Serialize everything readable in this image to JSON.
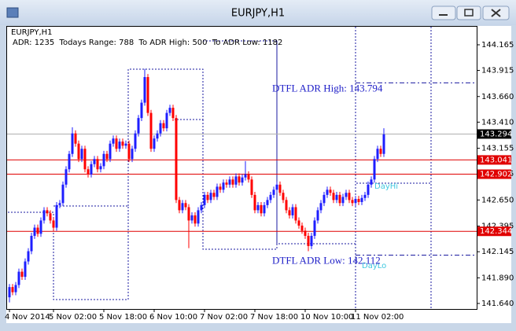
{
  "window": {
    "title": "EURJPY,H1"
  },
  "chart_data": {
    "type": "candlestick",
    "title": "EURJPY,H1",
    "subtitle": "ADR: 1235  Todays Range: 788  To ADR High: 500  To ADR Low: 1182",
    "up_color": "#1e1eff",
    "down_color": "#ff0000",
    "ylim": [
      141.586,
      144.349
    ],
    "yticks": [
      144.165,
      143.915,
      {
        "value": 143.66,
        "label": "143.660"
      },
      {
        "value": 143.41,
        "label": "143.410"
      },
      143.155,
      142.905,
      {
        "value": 142.65,
        "label": "142.650"
      },
      142.395,
      142.145,
      {
        "value": 141.89,
        "label": "141.890"
      },
      {
        "value": 141.64,
        "label": "141.640"
      }
    ],
    "xticks": [
      {
        "value": 0,
        "label": "4 Nov 2014"
      },
      {
        "value": 14,
        "label": "5 Nov 02:00"
      },
      {
        "value": 30,
        "label": "5 Nov 18:00"
      },
      {
        "value": 46,
        "label": "6 Nov 10:00"
      },
      {
        "value": 62,
        "label": "7 Nov 02:00"
      },
      {
        "value": 78,
        "label": "7 Nov 18:00"
      },
      {
        "value": 94,
        "label": "10 Nov 10:00"
      },
      {
        "value": 110,
        "label": "11 Nov 02:00"
      }
    ],
    "hlines": [
      {
        "value": 143.294,
        "color": "#b0b0b0"
      },
      {
        "value": 143.041,
        "color": "#e00000"
      },
      {
        "value": 142.902,
        "color": "#e00000"
      },
      {
        "value": 142.344,
        "color": "#e00000"
      }
    ],
    "adr_lines": [
      {
        "value": 143.794,
        "label": "DTFL ADR High: 143.794"
      },
      {
        "value": 142.112,
        "label": "DTFL ADR Low: 142.112"
      }
    ],
    "annotations": [
      "DayHi",
      "DayLo"
    ],
    "candles": [
      [
        141.7,
        141.83,
        141.65,
        141.8
      ],
      [
        141.8,
        141.83,
        141.72,
        141.75
      ],
      [
        141.75,
        141.85,
        141.72,
        141.82
      ],
      [
        141.82,
        141.98,
        141.79,
        141.95
      ],
      [
        141.95,
        141.98,
        141.87,
        141.9
      ],
      [
        141.9,
        142.08,
        141.87,
        142.05
      ],
      [
        142.05,
        142.18,
        142.02,
        142.15
      ],
      [
        142.15,
        142.33,
        142.12,
        142.3
      ],
      [
        142.3,
        142.41,
        142.27,
        142.38
      ],
      [
        142.38,
        142.41,
        142.29,
        142.32
      ],
      [
        142.32,
        142.48,
        142.29,
        142.45
      ],
      [
        142.45,
        142.58,
        142.42,
        142.55
      ],
      [
        142.55,
        142.58,
        142.49,
        142.52
      ],
      [
        142.52,
        142.55,
        142.42,
        142.45
      ],
      [
        142.45,
        142.48,
        142.35,
        142.38
      ],
      [
        142.38,
        142.63,
        142.35,
        142.6
      ],
      [
        142.6,
        142.65,
        142.57,
        142.62
      ],
      [
        142.62,
        142.83,
        142.59,
        142.8
      ],
      [
        142.8,
        142.98,
        142.77,
        142.95
      ],
      [
        142.95,
        143.13,
        142.92,
        143.1
      ],
      [
        143.1,
        143.36,
        143.07,
        143.3
      ],
      [
        143.3,
        143.33,
        143.17,
        143.2
      ],
      [
        143.2,
        143.23,
        143.02,
        143.05
      ],
      [
        143.05,
        143.18,
        143.02,
        143.15
      ],
      [
        143.15,
        143.18,
        142.92,
        142.95
      ],
      [
        142.95,
        142.98,
        142.87,
        142.9
      ],
      [
        142.9,
        143.03,
        142.87,
        143.0
      ],
      [
        143.0,
        143.08,
        142.97,
        143.05
      ],
      [
        143.05,
        143.08,
        142.92,
        142.95
      ],
      [
        142.95,
        143.01,
        142.92,
        142.98
      ],
      [
        142.98,
        143.13,
        142.95,
        143.1
      ],
      [
        143.1,
        143.13,
        143.02,
        143.05
      ],
      [
        143.05,
        143.23,
        143.02,
        143.2
      ],
      [
        143.2,
        143.28,
        143.17,
        143.25
      ],
      [
        143.25,
        143.28,
        143.12,
        143.15
      ],
      [
        143.15,
        143.25,
        143.12,
        143.22
      ],
      [
        143.22,
        143.25,
        143.15,
        143.18
      ],
      [
        143.18,
        143.23,
        143.15,
        143.2
      ],
      [
        143.2,
        143.23,
        143.02,
        143.05
      ],
      [
        143.05,
        143.18,
        143.02,
        143.15
      ],
      [
        143.15,
        143.33,
        143.12,
        143.3
      ],
      [
        143.3,
        143.48,
        143.27,
        143.45
      ],
      [
        143.45,
        143.63,
        143.42,
        143.6
      ],
      [
        143.6,
        143.93,
        143.57,
        143.85
      ],
      [
        143.85,
        143.88,
        143.47,
        143.5
      ],
      [
        143.5,
        143.53,
        143.12,
        143.15
      ],
      [
        143.15,
        143.28,
        143.12,
        143.25
      ],
      [
        143.25,
        143.33,
        143.22,
        143.3
      ],
      [
        143.3,
        143.43,
        143.27,
        143.4
      ],
      [
        143.4,
        143.43,
        143.32,
        143.35
      ],
      [
        143.35,
        143.53,
        143.32,
        143.5
      ],
      [
        143.5,
        143.58,
        143.47,
        143.55
      ],
      [
        143.55,
        143.58,
        143.42,
        143.45
      ],
      [
        143.45,
        143.48,
        142.62,
        142.65
      ],
      [
        142.65,
        142.68,
        142.52,
        142.55
      ],
      [
        142.55,
        142.65,
        142.52,
        142.62
      ],
      [
        142.62,
        142.65,
        142.55,
        142.58
      ],
      [
        142.58,
        142.61,
        142.18,
        142.45
      ],
      [
        142.45,
        142.53,
        142.42,
        142.5
      ],
      [
        142.5,
        142.53,
        142.39,
        142.42
      ],
      [
        142.42,
        142.58,
        142.39,
        142.55
      ],
      [
        142.55,
        142.63,
        142.52,
        142.6
      ],
      [
        142.6,
        142.73,
        142.57,
        142.7
      ],
      [
        142.7,
        142.73,
        142.62,
        142.65
      ],
      [
        142.65,
        142.75,
        142.62,
        142.72
      ],
      [
        142.72,
        142.75,
        142.65,
        142.68
      ],
      [
        142.68,
        142.81,
        142.65,
        142.78
      ],
      [
        142.78,
        142.81,
        142.72,
        142.75
      ],
      [
        142.75,
        142.85,
        142.72,
        142.82
      ],
      [
        142.82,
        142.85,
        142.77,
        142.8
      ],
      [
        142.8,
        142.88,
        142.77,
        142.85
      ],
      [
        142.85,
        142.88,
        142.77,
        142.8
      ],
      [
        142.8,
        142.91,
        142.77,
        142.88
      ],
      [
        142.88,
        142.91,
        142.79,
        142.82
      ],
      [
        142.82,
        142.9,
        142.79,
        142.87
      ],
      [
        142.87,
        143.03,
        142.84,
        142.9
      ],
      [
        142.9,
        142.93,
        142.82,
        142.85
      ],
      [
        142.85,
        142.88,
        142.67,
        142.7
      ],
      [
        142.7,
        142.73,
        142.52,
        142.55
      ],
      [
        142.55,
        142.63,
        142.52,
        142.6
      ],
      [
        142.6,
        142.63,
        142.49,
        142.52
      ],
      [
        142.52,
        142.63,
        142.49,
        142.6
      ],
      [
        142.6,
        142.68,
        142.57,
        142.65
      ],
      [
        142.65,
        142.73,
        142.62,
        142.7
      ],
      [
        142.7,
        142.78,
        142.67,
        142.75
      ],
      [
        142.75,
        142.83,
        142.72,
        142.8
      ],
      [
        142.8,
        142.83,
        142.69,
        142.72
      ],
      [
        142.72,
        142.75,
        142.62,
        142.65
      ],
      [
        142.65,
        142.68,
        142.52,
        142.55
      ],
      [
        142.55,
        142.58,
        142.47,
        142.5
      ],
      [
        142.5,
        142.61,
        142.47,
        142.58
      ],
      [
        142.58,
        142.61,
        142.42,
        142.45
      ],
      [
        142.45,
        142.48,
        142.37,
        142.4
      ],
      [
        142.4,
        142.43,
        142.32,
        142.35
      ],
      [
        142.35,
        142.38,
        142.27,
        142.3
      ],
      [
        142.3,
        142.33,
        142.15,
        142.2
      ],
      [
        142.2,
        142.33,
        142.17,
        142.3
      ],
      [
        142.3,
        142.48,
        142.27,
        142.45
      ],
      [
        142.45,
        142.58,
        142.42,
        142.55
      ],
      [
        142.55,
        142.65,
        142.52,
        142.62
      ],
      [
        142.62,
        142.73,
        142.59,
        142.7
      ],
      [
        142.7,
        142.78,
        142.67,
        142.75
      ],
      [
        142.75,
        142.78,
        142.69,
        142.72
      ],
      [
        142.72,
        142.75,
        142.62,
        142.65
      ],
      [
        142.65,
        142.73,
        142.62,
        142.7
      ],
      [
        142.7,
        142.73,
        142.59,
        142.62
      ],
      [
        142.62,
        142.71,
        142.59,
        142.68
      ],
      [
        142.68,
        142.75,
        142.65,
        142.72
      ],
      [
        142.72,
        142.75,
        142.62,
        142.65
      ],
      [
        142.65,
        142.68,
        142.59,
        142.62
      ],
      [
        142.62,
        142.69,
        142.59,
        142.66
      ],
      [
        142.66,
        142.69,
        142.6,
        142.63
      ],
      [
        142.63,
        142.7,
        142.6,
        142.67
      ],
      [
        142.67,
        142.73,
        142.64,
        142.7
      ],
      [
        142.7,
        142.83,
        142.67,
        142.8
      ],
      [
        142.8,
        142.88,
        142.77,
        142.85
      ],
      [
        142.85,
        143.08,
        142.82,
        143.05
      ],
      [
        143.05,
        143.18,
        143.02,
        143.15
      ],
      [
        143.15,
        143.18,
        143.07,
        143.1
      ],
      [
        143.1,
        143.35,
        143.07,
        143.29
      ]
    ]
  }
}
